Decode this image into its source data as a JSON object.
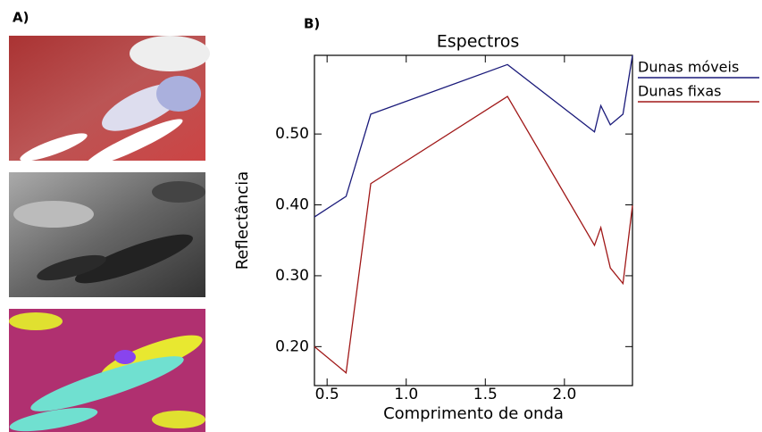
{
  "panel_labels": [
    "A)",
    "B)"
  ],
  "chart_data": {
    "type": "line",
    "title": "Espectros",
    "x_label": "Comprimento de onda",
    "y_label": "Reflectância",
    "x": [
      0.42,
      0.62,
      0.776,
      1.64,
      2.19,
      2.23,
      2.29,
      2.37,
      2.43
    ],
    "series": [
      {
        "name": "Dunas móveis",
        "color": "#1a1a7a",
        "values": [
          0.383,
          0.412,
          0.528,
          0.598,
          0.503,
          0.54,
          0.513,
          0.528,
          0.611
        ]
      },
      {
        "name": "Dunas fixas",
        "color": "#a01818",
        "values": [
          0.2,
          0.163,
          0.43,
          0.553,
          0.343,
          0.368,
          0.311,
          0.289,
          0.399
        ]
      }
    ],
    "xlim": [
      0.42,
      2.43
    ],
    "ylim": [
      0.145,
      0.611
    ],
    "xticks": [
      0.5,
      {
        "value": 1.0,
        "label": "1.0"
      },
      1.5,
      {
        "value": 2.0,
        "label": "2.0"
      }
    ],
    "yticks": [
      {
        "value": 0.2,
        "label": "0.20"
      },
      {
        "value": 0.3,
        "label": "0.30"
      },
      {
        "value": 0.4,
        "label": "0.40"
      },
      {
        "value": 0.5,
        "label": "0.50"
      }
    ],
    "legend": "outside-right"
  }
}
